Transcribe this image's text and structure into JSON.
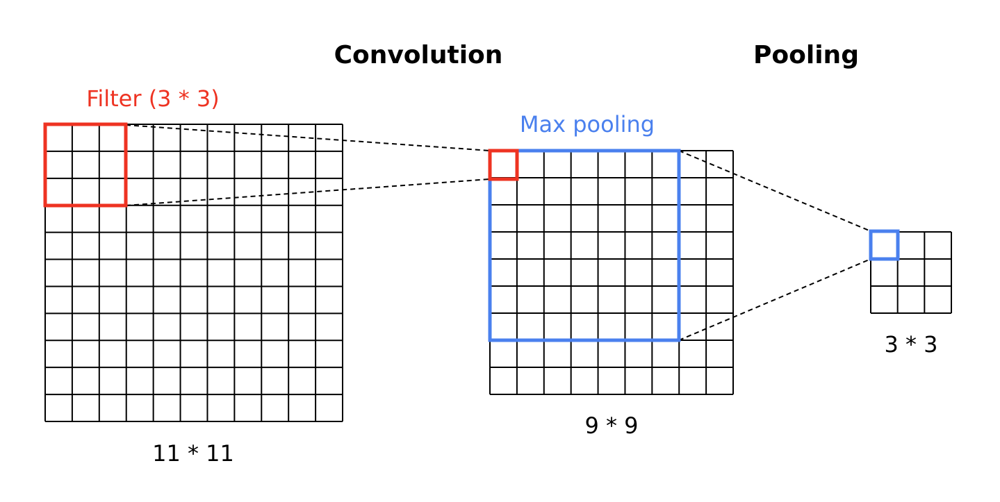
{
  "headings": {
    "convolution": "Convolution",
    "pooling": "Pooling"
  },
  "labels": {
    "filter": "Filter (3 * 3)",
    "max_pooling": "Max pooling",
    "input_size": "11 * 11",
    "conv_size": "9 * 9",
    "pool_size": "3 * 3"
  },
  "grids": {
    "input": 11,
    "conv": 9,
    "pool": 3
  },
  "colors": {
    "filter": "#ee3322",
    "pooling": "#4a80ee",
    "grid": "#000000"
  }
}
